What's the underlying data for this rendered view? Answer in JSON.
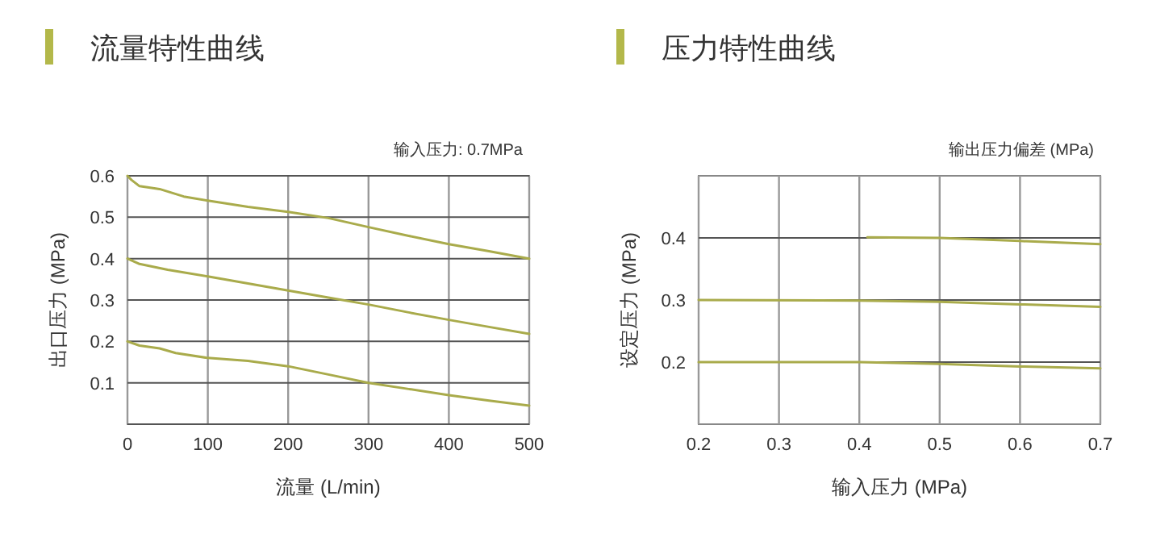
{
  "chart_data": [
    {
      "type": "line",
      "title": "流量特性曲线",
      "xlabel": "流量 (L/min)",
      "ylabel": "出口压力 (MPa)",
      "annotations": [
        "输入压力: 0.7MPa"
      ],
      "xlim": [
        0,
        500
      ],
      "xticks": [
        0,
        100,
        200,
        300,
        400,
        500
      ],
      "ylim": [
        0,
        0.6
      ],
      "yticks": [
        {
          "value": 0,
          "label": null
        },
        0.1,
        0.2,
        0.3,
        0.4,
        0.5,
        0.6
      ],
      "grid": true,
      "series": [
        {
          "color": "#a9ab4b",
          "x": [
            0,
            5,
            15,
            40,
            70,
            100,
            150,
            200,
            250,
            300,
            350,
            400,
            450,
            500
          ],
          "values": [
            0.6,
            0.59,
            0.575,
            0.568,
            0.55,
            0.54,
            0.525,
            0.513,
            0.498,
            0.476,
            0.455,
            0.435,
            0.418,
            0.4
          ]
        },
        {
          "color": "#a9ab4b",
          "x": [
            0,
            15,
            50,
            100,
            150,
            200,
            250,
            300,
            350,
            400,
            450,
            500
          ],
          "values": [
            0.4,
            0.387,
            0.373,
            0.357,
            0.34,
            0.323,
            0.306,
            0.289,
            0.27,
            0.252,
            0.235,
            0.218
          ]
        },
        {
          "color": "#a9ab4b",
          "x": [
            0,
            15,
            40,
            60,
            100,
            150,
            200,
            250,
            300,
            350,
            400,
            450,
            500
          ],
          "values": [
            0.2,
            0.19,
            0.183,
            0.172,
            0.16,
            0.153,
            0.14,
            0.12,
            0.1,
            0.085,
            0.07,
            0.057,
            0.045
          ]
        }
      ]
    },
    {
      "type": "line",
      "title": "压力特性曲线",
      "xlabel": "输入压力 (MPa)",
      "ylabel": "设定压力 (MPa)",
      "annotations": [
        "输出压力偏差 (MPa)"
      ],
      "xlim": [
        0.2,
        0.7
      ],
      "xticks": [
        0.2,
        0.3,
        0.4,
        0.5,
        0.6,
        0.7
      ],
      "ylim": [
        0.1,
        0.5
      ],
      "yticks": [
        0.2,
        0.3,
        0.4
      ],
      "grid": true,
      "series": [
        {
          "color": "#a9ab4b",
          "x": [
            0.41,
            0.5,
            0.6,
            0.7
          ],
          "values": [
            0.401,
            0.4,
            0.395,
            0.39
          ]
        },
        {
          "color": "#a9ab4b",
          "x": [
            0.2,
            0.4,
            0.5,
            0.6,
            0.7
          ],
          "values": [
            0.3,
            0.299,
            0.297,
            0.293,
            0.289
          ]
        },
        {
          "color": "#a9ab4b",
          "x": [
            0.2,
            0.4,
            0.5,
            0.6,
            0.7
          ],
          "values": [
            0.2,
            0.2,
            0.197,
            0.193,
            0.19
          ]
        }
      ]
    }
  ]
}
